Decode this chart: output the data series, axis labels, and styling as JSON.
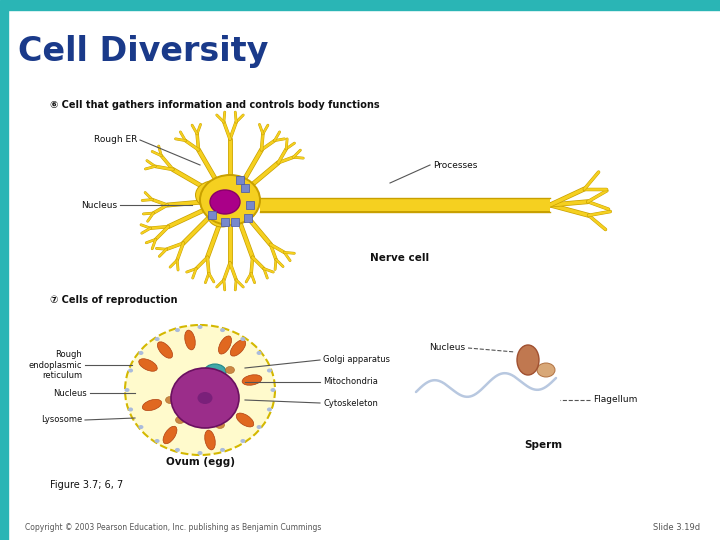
{
  "title": "Cell Diversity",
  "title_color": "#1a3a8a",
  "title_fontsize": 24,
  "bg_color": "#ffffff",
  "header_bar_color": "#2ab5b5",
  "left_bar_color": "#2ab5b5",
  "section6_label": "⑥ Cell that gathers information and controls body functions",
  "section7_label": "⑦ Cells of reproduction",
  "nerve_cell_label": "Nerve cell",
  "ovum_label": "Ovum (egg)",
  "sperm_label": "Sperm",
  "figure_label": "Figure 3.7; 6, 7",
  "copyright_text": "Copyright © 2003 Pearson Education, Inc. publishing as Benjamin Cummings",
  "slide_label": "Slide 3.19d",
  "neuron_color": "#f5d020",
  "neuron_edge": "#c8a000",
  "nucleus_color_neuron": "#aa0088",
  "nucleus_edge_neuron": "#880066",
  "ribosome_color": "#7788cc",
  "axon_color": "#f5d020",
  "terminal_color": "#f5d020",
  "ovum_fill": "#fffacc",
  "ovum_edge": "#d4b800",
  "ovum_nucleus_color": "#9b2d8a",
  "mito_color": "#e06820",
  "golgi_color": "#40a8a8",
  "lyso_color": "#cc8844",
  "sperm_head_color": "#c07850",
  "sperm_mid_color": "#d8a878",
  "sperm_tail_color": "#b8c8e0",
  "ann_line_color": "#555555",
  "ann_text_color": "#111111"
}
